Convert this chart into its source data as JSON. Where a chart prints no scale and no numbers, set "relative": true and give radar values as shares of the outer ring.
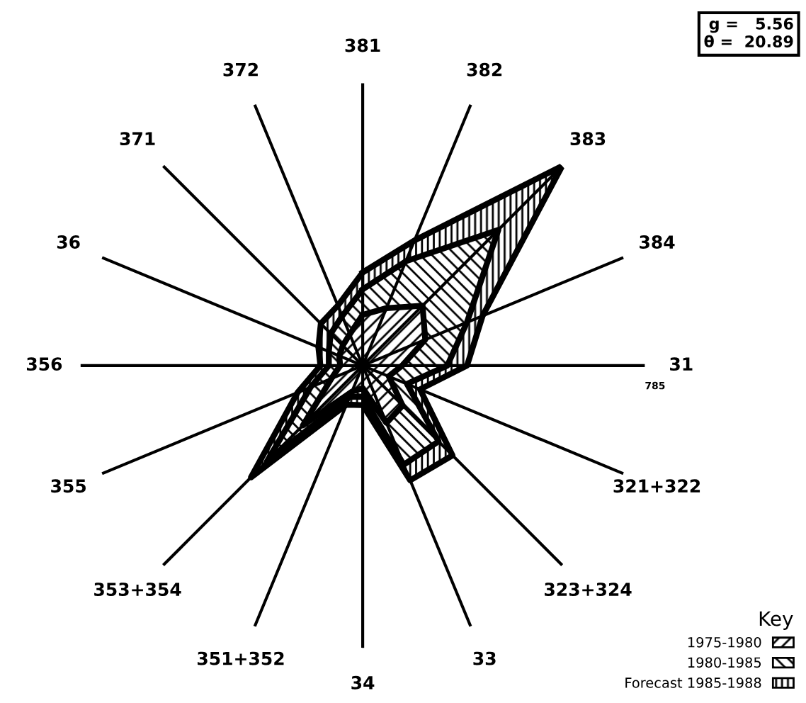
{
  "chart_data": {
    "type": "radar",
    "relative": true,
    "legend": "bottom right",
    "legend_title": "Key",
    "marker": "none",
    "categories": [
      "381",
      "382",
      "383",
      "384",
      "31",
      "321+322",
      "323+324",
      "33",
      "34",
      "351+352",
      "353+354",
      "355",
      "356",
      "36",
      "371",
      "372"
    ],
    "series": [
      {
        "name": "Forecast 1985-1988",
        "color": "#000000",
        "values": [
          0.33,
          0.48,
          1.0,
          0.46,
          0.37,
          0.22,
          0.45,
          0.44,
          0.14,
          0.15,
          0.56,
          0.25,
          0.15,
          0.17,
          0.21,
          0.23
        ]
      },
      {
        "name": "1980-1985",
        "color": "#000000",
        "values": [
          0.27,
          0.4,
          0.68,
          0.4,
          0.3,
          0.17,
          0.38,
          0.38,
          0.11,
          0.12,
          0.48,
          0.2,
          0.12,
          0.13,
          0.16,
          0.19
        ]
      },
      {
        "name": "1975-1980",
        "color": "#000000",
        "values": [
          0.18,
          0.22,
          0.3,
          0.24,
          0.14,
          0.1,
          0.2,
          0.22,
          0.08,
          0.1,
          0.3,
          0.12,
          0.08,
          0.09,
          0.1,
          0.12
        ]
      }
    ],
    "annotations": [
      "g =   5.56\nθ =  20.89",
      "785"
    ]
  }
}
